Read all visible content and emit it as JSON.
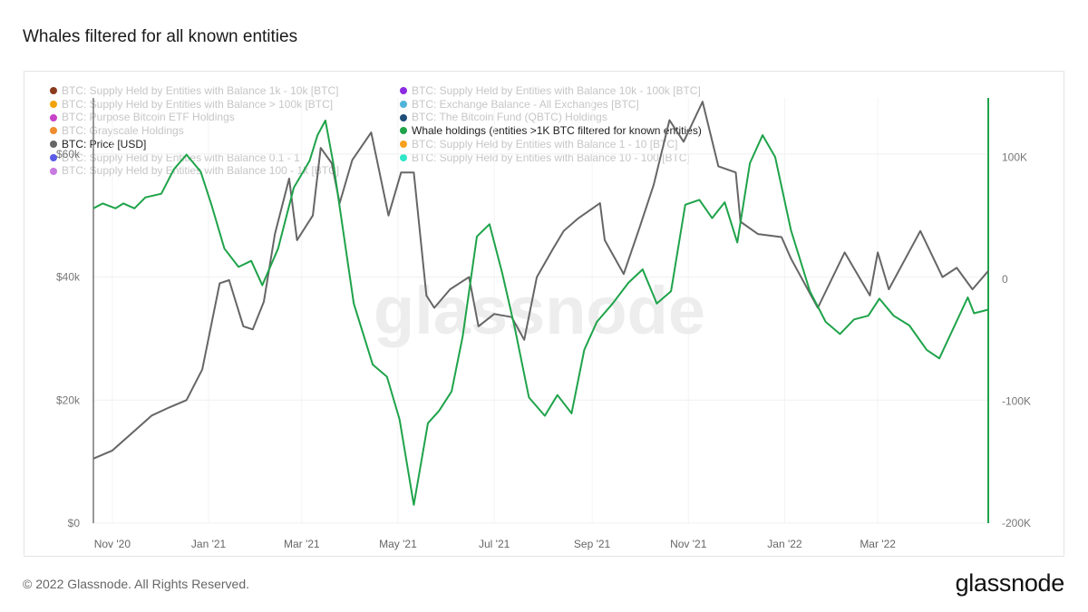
{
  "title": "Whales filtered for all known entities",
  "watermark": "glassnode",
  "footer": "© 2022 Glassnode. All Rights Reserved.",
  "brand": "glassnode",
  "legend": [
    {
      "label": "BTC: Supply Held by Entities with Balance 1k - 10k [BTC]",
      "color": "#8b3a1e",
      "active": false,
      "column": 1
    },
    {
      "label": "BTC: Supply Held by Entities with Balance > 100k [BTC]",
      "color": "#f0a30a",
      "active": false,
      "column": 1
    },
    {
      "label": "BTC: Purpose Bitcoin ETF Holdings",
      "color": "#c843c8",
      "active": false,
      "column": 1
    },
    {
      "label": "BTC: Grayscale Holdings",
      "color": "#f08c30",
      "active": false,
      "column": 1
    },
    {
      "label": "BTC: Price [USD]",
      "color": "#666666",
      "active": true,
      "column": 1
    },
    {
      "label": "BTC: Supply Held by Entities with Balance 0.1 - 1",
      "color": "#5b5be8",
      "active": false,
      "column": 1
    },
    {
      "label": "BTC: Supply Held by Entities with Balance 100 - 1k [BTC]",
      "color": "#c77ae0",
      "active": false,
      "column": 1
    },
    {
      "label": "BTC: Supply Held by Entities with Balance 10k - 100k [BTC]",
      "color": "#8a2be2",
      "active": false,
      "column": 2
    },
    {
      "label": "BTC: Exchange Balance - All Exchanges [BTC]",
      "color": "#4fb3d9",
      "active": false,
      "column": 2
    },
    {
      "label": "BTC: The Bitcoin Fund (QBTC) Holdings",
      "color": "#1f4e79",
      "active": false,
      "column": 2
    },
    {
      "label": "Whale holdings (entities >1K BTC filtered for known entities)",
      "color": "#1fa34a",
      "active": true,
      "column": 2
    },
    {
      "label": "BTC: Supply Held by Entities with Balance 1 - 10 [BTC]",
      "color": "#f5a020",
      "active": false,
      "column": 2
    },
    {
      "label": "BTC: Supply Held by Entities with Balance 10 - 100 [BTC]",
      "color": "#2ee6c8",
      "active": false,
      "column": 2
    }
  ],
  "chart_data": {
    "type": "line",
    "x_tick_labels": [
      "Nov '20",
      "Jan '21",
      "Mar '21",
      "May '21",
      "Jul '21",
      "Sep '21",
      "Nov '21",
      "Jan '22",
      "Mar '22"
    ],
    "x_range": [
      "2020-10-20",
      "2022-05-10"
    ],
    "y_left": {
      "tick_labels": [
        "$0",
        "$20k",
        "$40k",
        "$60k"
      ],
      "ticks": [
        0,
        20000,
        40000,
        60000
      ],
      "range": [
        0,
        70000
      ]
    },
    "y_right": {
      "tick_labels": [
        "-200K",
        "-100K",
        "0",
        "100K"
      ],
      "ticks": [
        -200000,
        -100000,
        0,
        100000
      ],
      "range": [
        -200000,
        150000
      ]
    },
    "grid": true,
    "series": [
      {
        "name": "BTC: Price [USD]",
        "axis": "left",
        "color": "#666666",
        "points": [
          [
            "2020-10-20",
            10500
          ],
          [
            "2020-11-01",
            11800
          ],
          [
            "2020-11-15",
            15000
          ],
          [
            "2020-11-26",
            17500
          ],
          [
            "2020-12-07",
            18800
          ],
          [
            "2020-12-18",
            20000
          ],
          [
            "2020-12-28",
            25000
          ],
          [
            "2021-01-08",
            39000
          ],
          [
            "2021-01-14",
            39500
          ],
          [
            "2021-01-23",
            32000
          ],
          [
            "2021-01-29",
            31500
          ],
          [
            "2021-02-05",
            36000
          ],
          [
            "2021-02-12",
            47000
          ],
          [
            "2021-02-21",
            56000
          ],
          [
            "2021-02-26",
            46000
          ],
          [
            "2021-03-08",
            50000
          ],
          [
            "2021-03-13",
            61000
          ],
          [
            "2021-03-20",
            58500
          ],
          [
            "2021-03-25",
            52000
          ],
          [
            "2021-04-02",
            59000
          ],
          [
            "2021-04-14",
            63500
          ],
          [
            "2021-04-25",
            50000
          ],
          [
            "2021-05-03",
            57000
          ],
          [
            "2021-05-11",
            57000
          ],
          [
            "2021-05-19",
            37000
          ],
          [
            "2021-05-24",
            35000
          ],
          [
            "2021-06-03",
            38000
          ],
          [
            "2021-06-15",
            40000
          ],
          [
            "2021-06-21",
            32000
          ],
          [
            "2021-07-01",
            34000
          ],
          [
            "2021-07-12",
            33500
          ],
          [
            "2021-07-20",
            29800
          ],
          [
            "2021-07-28",
            40000
          ],
          [
            "2021-08-07",
            44500
          ],
          [
            "2021-08-14",
            47500
          ],
          [
            "2021-08-23",
            49500
          ],
          [
            "2021-09-06",
            52000
          ],
          [
            "2021-09-09",
            46000
          ],
          [
            "2021-09-21",
            40500
          ],
          [
            "2021-10-01",
            48000
          ],
          [
            "2021-10-10",
            55000
          ],
          [
            "2021-10-20",
            65500
          ],
          [
            "2021-10-29",
            62000
          ],
          [
            "2021-11-10",
            68500
          ],
          [
            "2021-11-20",
            58000
          ],
          [
            "2021-12-01",
            57000
          ],
          [
            "2021-12-04",
            49000
          ],
          [
            "2021-12-15",
            47000
          ],
          [
            "2021-12-30",
            46500
          ],
          [
            "2022-01-05",
            43000
          ],
          [
            "2022-01-22",
            35000
          ],
          [
            "2022-02-08",
            44000
          ],
          [
            "2022-02-24",
            37000
          ],
          [
            "2022-03-01",
            44000
          ],
          [
            "2022-03-08",
            38000
          ],
          [
            "2022-03-28",
            47500
          ],
          [
            "2022-04-11",
            40000
          ],
          [
            "2022-04-20",
            41500
          ],
          [
            "2022-04-30",
            38000
          ],
          [
            "2022-05-10",
            41000
          ]
        ]
      },
      {
        "name": "Whale holdings (entities >1K BTC filtered for known entities)",
        "axis": "right",
        "color": "#1fa34a",
        "points": [
          [
            "2020-10-20",
            58000
          ],
          [
            "2020-10-26",
            62000
          ],
          [
            "2020-11-03",
            58000
          ],
          [
            "2020-11-08",
            62000
          ],
          [
            "2020-11-15",
            58000
          ],
          [
            "2020-11-22",
            67000
          ],
          [
            "2020-12-02",
            70000
          ],
          [
            "2020-12-10",
            90000
          ],
          [
            "2020-12-18",
            102000
          ],
          [
            "2020-12-27",
            88000
          ],
          [
            "2021-01-03",
            60000
          ],
          [
            "2021-01-11",
            25000
          ],
          [
            "2021-01-20",
            10000
          ],
          [
            "2021-01-28",
            15000
          ],
          [
            "2021-02-04",
            -5000
          ],
          [
            "2021-02-14",
            25000
          ],
          [
            "2021-02-24",
            75000
          ],
          [
            "2021-03-06",
            97000
          ],
          [
            "2021-03-11",
            118000
          ],
          [
            "2021-03-16",
            130000
          ],
          [
            "2021-03-21",
            95000
          ],
          [
            "2021-04-03",
            -20000
          ],
          [
            "2021-04-15",
            -70000
          ],
          [
            "2021-04-24",
            -80000
          ],
          [
            "2021-05-02",
            -115000
          ],
          [
            "2021-05-11",
            -185000
          ],
          [
            "2021-05-20",
            -118000
          ],
          [
            "2021-05-27",
            -108000
          ],
          [
            "2021-06-04",
            -92000
          ],
          [
            "2021-06-11",
            -47000
          ],
          [
            "2021-06-20",
            35000
          ],
          [
            "2021-06-28",
            45000
          ],
          [
            "2021-07-06",
            5000
          ],
          [
            "2021-07-14",
            -40000
          ],
          [
            "2021-07-23",
            -97000
          ],
          [
            "2021-08-02",
            -112000
          ],
          [
            "2021-08-10",
            -95000
          ],
          [
            "2021-08-19",
            -110000
          ],
          [
            "2021-08-27",
            -58000
          ],
          [
            "2021-09-04",
            -35000
          ],
          [
            "2021-09-14",
            -20000
          ],
          [
            "2021-09-24",
            -3000
          ],
          [
            "2021-10-03",
            8000
          ],
          [
            "2021-10-12",
            -20000
          ],
          [
            "2021-10-21",
            -10000
          ],
          [
            "2021-10-30",
            61000
          ],
          [
            "2021-11-08",
            65000
          ],
          [
            "2021-11-16",
            50000
          ],
          [
            "2021-11-24",
            63000
          ],
          [
            "2021-12-02",
            30000
          ],
          [
            "2021-12-10",
            95000
          ],
          [
            "2021-12-18",
            118000
          ],
          [
            "2021-12-26",
            100000
          ],
          [
            "2022-01-05",
            40000
          ],
          [
            "2022-01-17",
            -10000
          ],
          [
            "2022-01-27",
            -35000
          ],
          [
            "2022-02-05",
            -45000
          ],
          [
            "2022-02-14",
            -33000
          ],
          [
            "2022-02-23",
            -30000
          ],
          [
            "2022-03-02",
            -16000
          ],
          [
            "2022-03-11",
            -30000
          ],
          [
            "2022-03-21",
            -38000
          ],
          [
            "2022-04-01",
            -58000
          ],
          [
            "2022-04-09",
            -65000
          ],
          [
            "2022-04-18",
            -40000
          ],
          [
            "2022-04-27",
            -15000
          ],
          [
            "2022-05-01",
            -28000
          ],
          [
            "2022-05-10",
            -25000
          ]
        ]
      }
    ]
  }
}
